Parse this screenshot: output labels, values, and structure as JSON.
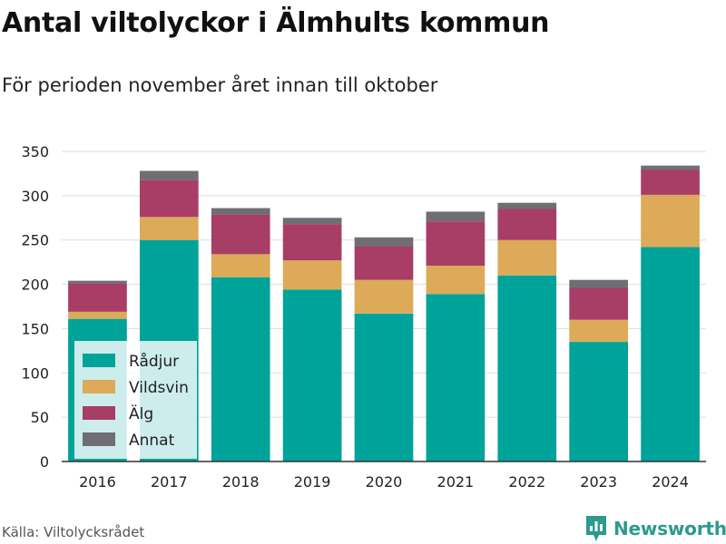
{
  "title": "Antal viltolyckor i Älmhults kommun",
  "subtitle": "För perioden november året innan till oktober",
  "source": "Källa: Viltolycksrådet",
  "brand": {
    "name": "Newsworthy",
    "icon": "newsworthy-logo-icon",
    "color": "#2d9a8e"
  },
  "chart_data": {
    "type": "bar",
    "stacked": true,
    "categories": [
      "2016",
      "2017",
      "2018",
      "2019",
      "2020",
      "2021",
      "2022",
      "2023",
      "2024"
    ],
    "series": [
      {
        "name": "Rådjur",
        "color": "#00a39a",
        "values": [
          161,
          250,
          208,
          194,
          167,
          189,
          210,
          135,
          242
        ]
      },
      {
        "name": "Vildsvin",
        "color": "#dcaa58",
        "values": [
          8,
          26,
          26,
          33,
          38,
          32,
          40,
          25,
          59
        ]
      },
      {
        "name": "Älg",
        "color": "#a83d66",
        "values": [
          32,
          42,
          45,
          41,
          38,
          50,
          35,
          36,
          28
        ]
      },
      {
        "name": "Annat",
        "color": "#6e6e73",
        "values": [
          3,
          10,
          7,
          7,
          10,
          11,
          7,
          9,
          5
        ]
      }
    ],
    "yticks": [
      0,
      50,
      100,
      150,
      200,
      250,
      300,
      350
    ],
    "ylim": [
      0,
      350
    ],
    "grid": true,
    "legend": "bottom-left"
  }
}
